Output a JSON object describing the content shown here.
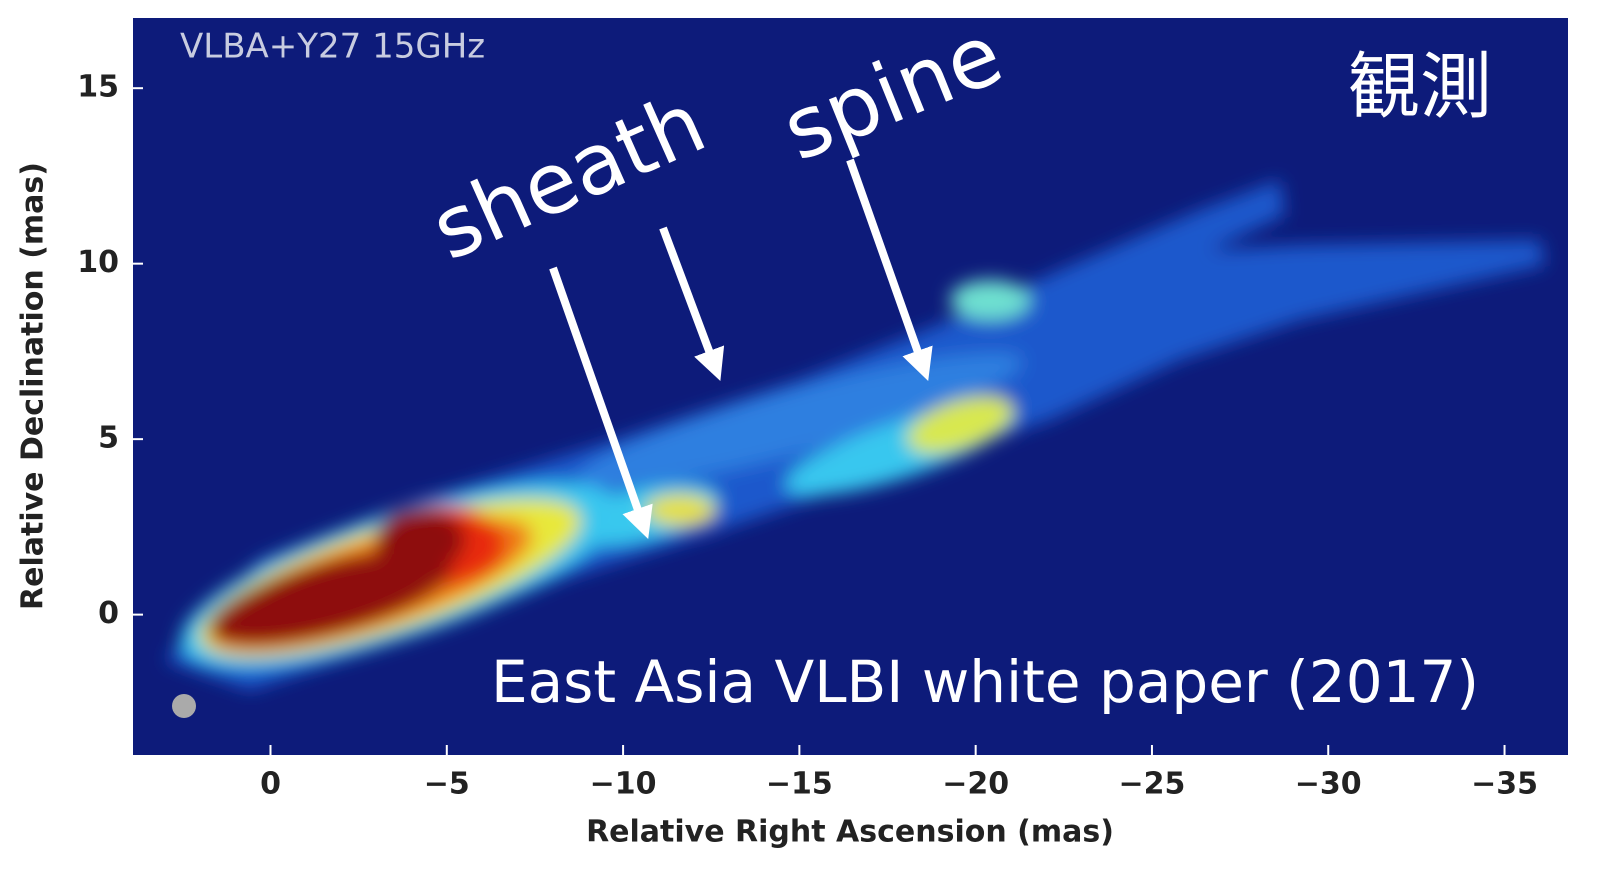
{
  "chart_data": {
    "type": "image",
    "title": "VLBA+Y27 15GHz",
    "xlabel": "Relative Right Ascension (mas)",
    "ylabel": "Relative Declination (mas)",
    "xlim": [
      3.9,
      -36.8
    ],
    "ylim": [
      -4,
      17
    ],
    "xticks": [
      0,
      {
        "value": -5,
        "label": "−5"
      },
      {
        "value": -10,
        "label": "−10"
      },
      {
        "value": -15,
        "label": "−15"
      },
      {
        "value": -20,
        "label": "−20"
      },
      {
        "value": -25,
        "label": "−25"
      },
      {
        "value": -30,
        "label": "−30"
      },
      {
        "value": -35,
        "label": "−35"
      }
    ],
    "yticks": [
      0,
      5,
      10,
      15
    ],
    "annotations": [
      "sheath",
      "spine",
      "観測",
      "East Asia VLBI white paper (2017)"
    ]
  }
}
